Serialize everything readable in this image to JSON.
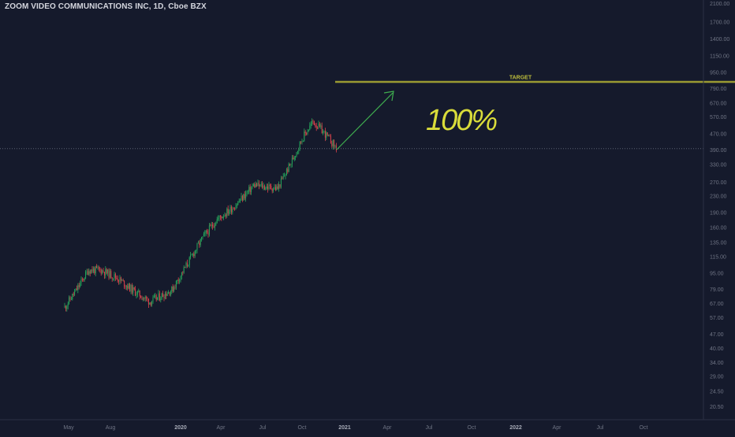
{
  "header": {
    "symbol_title": "ZOOM VIDEO COMMUNICATIONS INC, 1D, Cboe BZX"
  },
  "colors": {
    "background": "#151a2c",
    "axis_text": "#6f7484",
    "up_candle": "#26a65b",
    "down_candle": "#d9434b",
    "target_line": "#9a9a32",
    "target_label": "#bfbf3c",
    "arrow": "#3fae4f",
    "annotation_text": "#d9dc3a",
    "crosshair": "#5b6070"
  },
  "chart_data": {
    "type": "candlestick",
    "title": "ZOOM VIDEO COMMUNICATIONS INC, 1D, Cboe BZX",
    "y_scale": "log",
    "ylim": [
      18.5,
      2400
    ],
    "y_ticks": [
      20.5,
      24.5,
      29.0,
      34.0,
      40.0,
      47.0,
      57.0,
      67.0,
      79.0,
      95.0,
      115.0,
      135.0,
      160.0,
      190.0,
      230.0,
      270.0,
      330.0,
      390.0,
      470.0,
      570.0,
      670.0,
      790.0,
      950.0,
      1150.0,
      1400.0,
      1700.0,
      2100.0
    ],
    "x_ticks": [
      "May",
      "Aug",
      "2020",
      "Apr",
      "Jul",
      "Oct",
      "2021",
      "Apr",
      "Jul",
      "Oct",
      "2022",
      "Apr",
      "Jul",
      "Oct"
    ],
    "price_path": [
      [
        "May",
        64
      ],
      [
        "May",
        78
      ],
      [
        "May",
        98
      ],
      [
        "Aug",
        98
      ],
      [
        "Aug",
        90
      ],
      [
        "Aug",
        78
      ],
      [
        "2020",
        68
      ],
      [
        "2020",
        78
      ],
      [
        "Apr",
        140
      ],
      [
        "Apr",
        175
      ],
      [
        "Apr",
        205
      ],
      [
        "Jul",
        260
      ],
      [
        "Jul",
        250
      ],
      [
        "Jul",
        330
      ],
      [
        "Oct",
        450
      ],
      [
        "Oct",
        540
      ],
      [
        "Oct",
        470
      ],
      [
        "Oct",
        395
      ]
    ],
    "annotations": {
      "target_label": "TARGET",
      "target_price": 850,
      "last_price": 395,
      "projection_text": "100%"
    }
  }
}
